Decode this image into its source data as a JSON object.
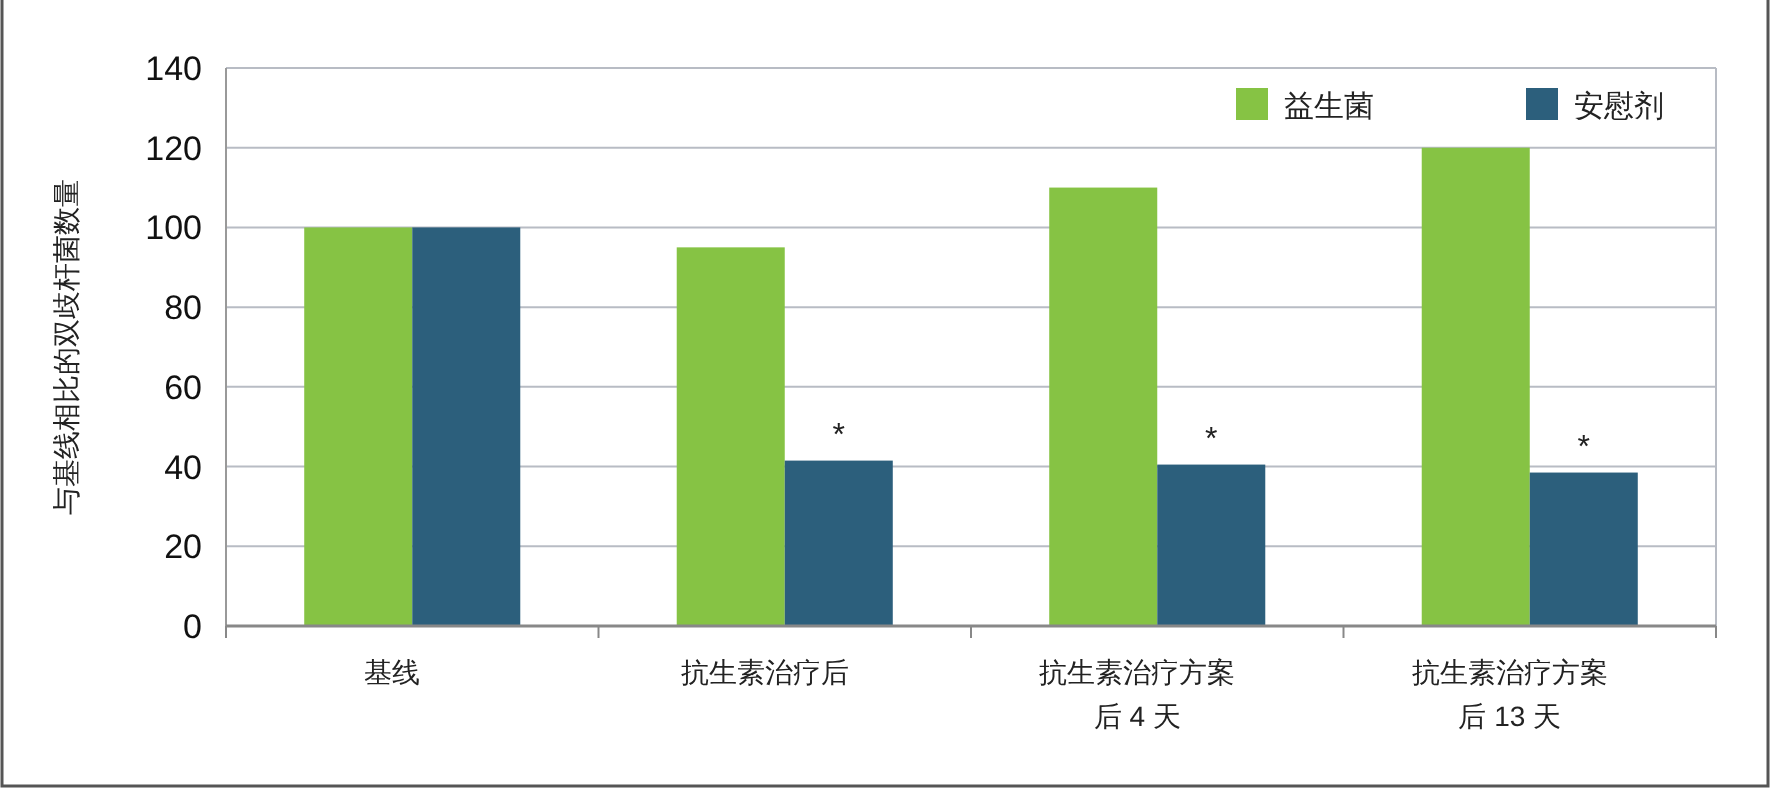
{
  "chart_data": {
    "type": "bar",
    "ylabel": "与基线相比的双歧杆菌数量",
    "categories": [
      "基线",
      "抗生素治疗后",
      "抗生素治疗方案后 4 天",
      "抗生素治疗方案后 13 天"
    ],
    "series": [
      {
        "name": "益生菌",
        "color": "#86c344",
        "values": [
          100,
          95,
          110,
          120
        ]
      },
      {
        "name": "安慰剂",
        "color": "#2c5f7c",
        "values": [
          100,
          41.5,
          40.5,
          38.5
        ]
      }
    ],
    "annotations": [
      "*",
      "*",
      "*"
    ],
    "ylim": [
      0,
      140
    ],
    "yticks": [
      0,
      20,
      40,
      60,
      80,
      100,
      120,
      140
    ],
    "grid": "y",
    "legend": "top right"
  }
}
